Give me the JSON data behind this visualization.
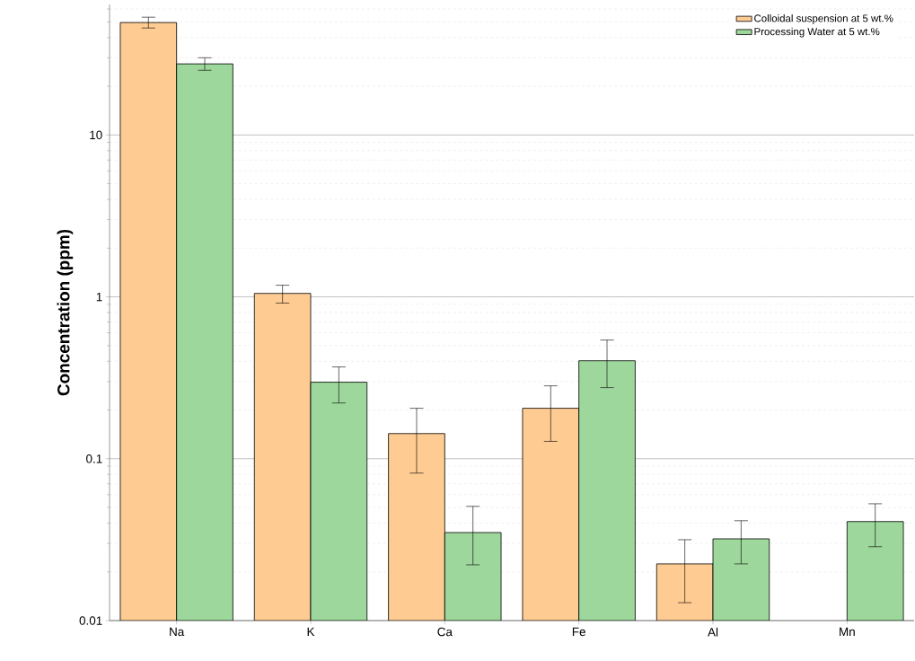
{
  "chart_data": {
    "type": "bar",
    "ylabel": "Concentration (ppm)",
    "categories": [
      "Na",
      "K",
      "Ca",
      "Fe",
      "Al",
      "Mn"
    ],
    "series": [
      {
        "name": "Colloidal suspension at 5 wt.%",
        "color": "#fecb92",
        "values": [
          49.5,
          1.05,
          0.143,
          0.205,
          0.0224,
          null
        ],
        "errors": [
          [
            45.8,
            53.4
          ],
          [
            0.915,
            1.18
          ],
          [
            0.0815,
            0.205
          ],
          [
            0.128,
            0.282
          ],
          [
            0.0129,
            0.0316
          ],
          null
        ]
      },
      {
        "name": "Processing Water at 5 wt.%",
        "color": "#9dd79b",
        "values": [
          27.5,
          0.297,
          0.035,
          0.403,
          0.032,
          0.0409
        ],
        "errors": [
          [
            25.1,
            30.0
          ],
          [
            0.221,
            0.369
          ],
          [
            0.0221,
            0.0508
          ],
          [
            0.275,
            0.541
          ],
          [
            0.0224,
            0.0414
          ],
          [
            0.0286,
            0.0527
          ]
        ]
      }
    ],
    "log": true,
    "ylim": [
      0.01,
      64
    ],
    "yticks": [
      0.01,
      0.1,
      1,
      10
    ],
    "grid": "y",
    "legend": "top right"
  }
}
